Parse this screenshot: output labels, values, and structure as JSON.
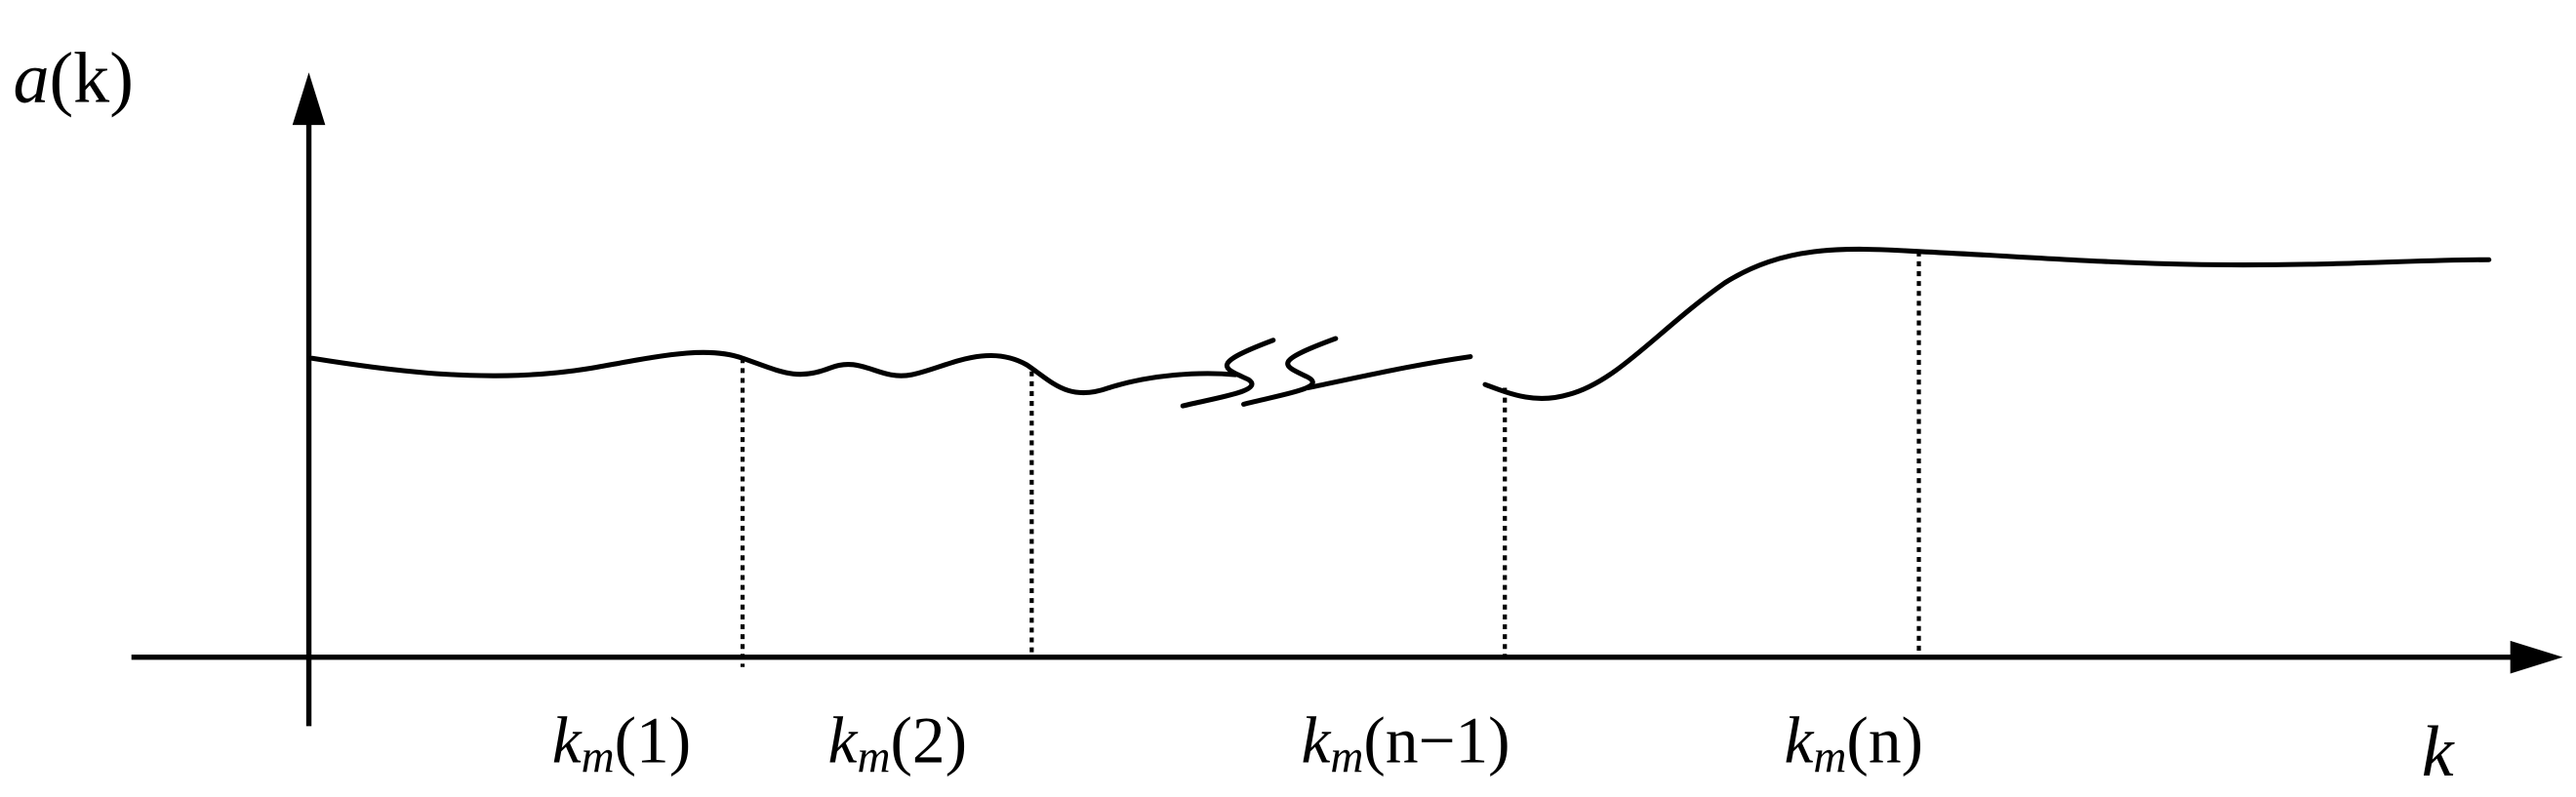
{
  "y_axis_label": {
    "symbol": "a",
    "arg": "(k)"
  },
  "x_axis_label": "k",
  "markers": [
    {
      "base": "k",
      "sub": "m",
      "arg": "(1)"
    },
    {
      "base": "k",
      "sub": "m",
      "arg": "(2)"
    },
    {
      "base": "k",
      "sub": "m",
      "arg": "(n−1)"
    },
    {
      "base": "k",
      "sub": "m",
      "arg": "(n)"
    }
  ]
}
